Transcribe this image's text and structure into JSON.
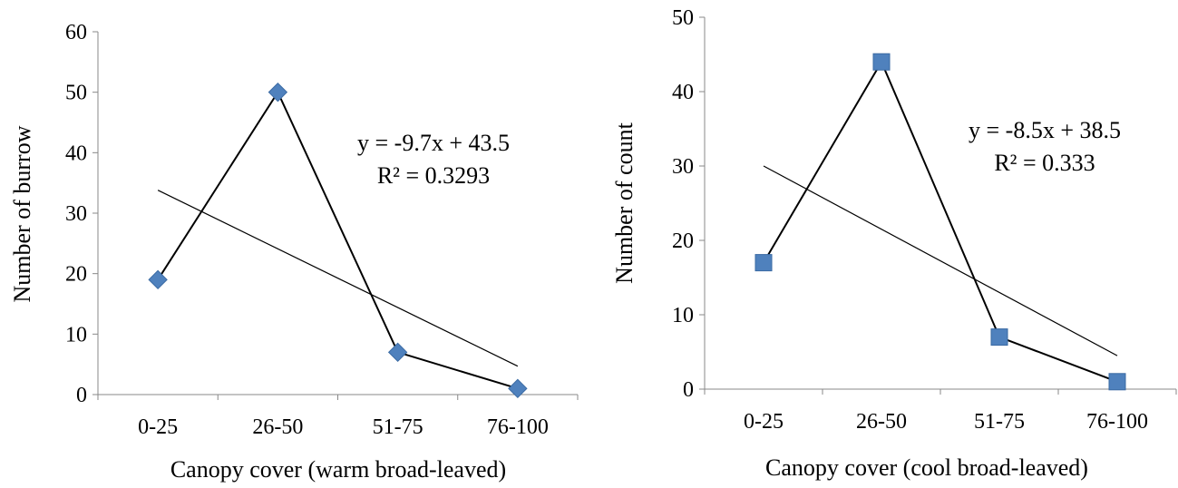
{
  "chart_data": [
    {
      "type": "line",
      "categories": [
        "0-25",
        "26-50",
        "51-75",
        "76-100"
      ],
      "series": [
        {
          "values": [
            19,
            50,
            7,
            1
          ],
          "marker": "diamond",
          "color": "#4F81BD"
        }
      ],
      "trendline": {
        "slope": -9.7,
        "intercept": 43.5,
        "equation": "y = -9.7x + 43.5",
        "r2": "R² = 0.3293"
      },
      "xlabel": "Canopy cover (warm broad-leaved)",
      "ylabel": "Number of burrow",
      "ylim": [
        0,
        60
      ],
      "yticks": [
        0,
        10,
        20,
        30,
        40,
        50,
        60
      ],
      "grid": false
    },
    {
      "type": "line",
      "categories": [
        "0-25",
        "26-50",
        "51-75",
        "76-100"
      ],
      "series": [
        {
          "values": [
            17,
            44,
            7,
            1
          ],
          "marker": "square",
          "color": "#4F81BD"
        }
      ],
      "trendline": {
        "slope": -8.5,
        "intercept": 38.5,
        "equation": "y = -8.5x + 38.5",
        "r2": "R² = 0.333"
      },
      "xlabel": "Canopy cover (cool broad-leaved)",
      "ylabel": "Number of count",
      "ylim": [
        0,
        50
      ],
      "yticks": [
        0,
        10,
        20,
        30,
        40,
        50
      ],
      "grid": false
    }
  ]
}
